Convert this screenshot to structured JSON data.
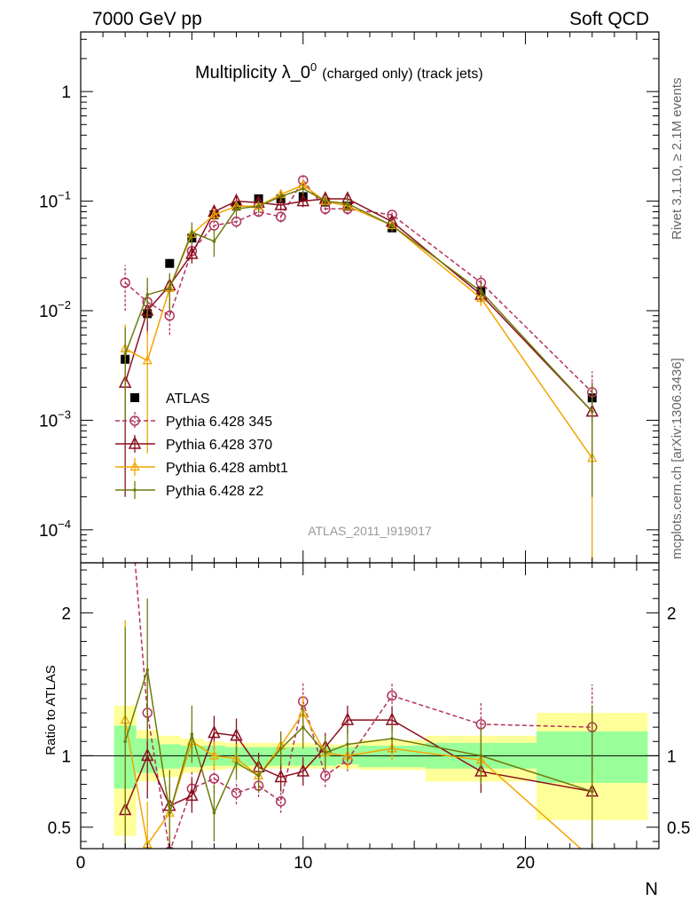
{
  "header": {
    "left": "7000 GeV pp",
    "right": "Soft QCD"
  },
  "title": {
    "main": "Multiplicity λ_0",
    "sup": "0",
    "sub": "(charged only) (track jets)"
  },
  "side_labels": {
    "rivet": "Rivet 3.1.10, ≥ 2.1M events",
    "mcplots": "mcplots.cern.ch [arXiv:1306.3436]"
  },
  "analysis_id": "ATLAS_2011_I919017",
  "chart_data": [
    {
      "type": "line",
      "panel": "main",
      "yscale": "log",
      "xlim": [
        0,
        26
      ],
      "ylim": [
        5e-05,
        3.5
      ],
      "y_ticks": [
        {
          "value": 1,
          "base": "1",
          "exp": ""
        },
        {
          "value": 0.1,
          "base": "10",
          "exp": "−1"
        },
        {
          "value": 0.01,
          "base": "10",
          "exp": "−2"
        },
        {
          "value": 0.001,
          "base": "10",
          "exp": "−3"
        },
        {
          "value": 0.0001,
          "base": "10",
          "exp": "−4"
        }
      ],
      "legend_position": "lower-left",
      "series": [
        {
          "name": "ATLAS",
          "color": "#000000",
          "marker": "square",
          "style": "points",
          "x": [
            2,
            3,
            4,
            5,
            6,
            7,
            8,
            9,
            10,
            11,
            12,
            14,
            18,
            23
          ],
          "y": [
            0.0036,
            0.0094,
            0.027,
            0.046,
            0.075,
            0.09,
            0.105,
            0.105,
            0.11,
            0.098,
            0.09,
            0.057,
            0.015,
            0.0016
          ]
        },
        {
          "name": "Pythia 6.428 345",
          "color": "#b0345a",
          "marker": "circle",
          "style": "dashed",
          "x": [
            2,
            3,
            4,
            5,
            6,
            7,
            8,
            9,
            10,
            11,
            12,
            14,
            18,
            23
          ],
          "y": [
            0.018,
            0.012,
            0.009,
            0.035,
            0.06,
            0.065,
            0.08,
            0.072,
            0.155,
            0.085,
            0.085,
            0.075,
            0.018,
            0.0018
          ],
          "err": [
            0.008,
            0.004,
            0.003,
            0.006,
            0.008,
            0.008,
            0.008,
            0.008,
            0.02,
            0.01,
            0.01,
            0.007,
            0.003,
            0.001
          ]
        },
        {
          "name": "Pythia 6.428 370",
          "color": "#8b0f1e",
          "marker": "triangle",
          "style": "solid",
          "x": [
            2,
            3,
            4,
            5,
            6,
            7,
            8,
            9,
            10,
            11,
            12,
            14,
            18,
            23
          ],
          "y": [
            0.0022,
            0.01,
            0.017,
            0.033,
            0.08,
            0.1,
            0.097,
            0.092,
            0.1,
            0.105,
            0.105,
            0.065,
            0.014,
            0.0012
          ],
          "err": [
            0.002,
            0.004,
            0.004,
            0.006,
            0.01,
            0.012,
            0.01,
            0.01,
            0.012,
            0.012,
            0.012,
            0.007,
            0.002,
            0.001
          ]
        },
        {
          "name": "Pythia 6.428 ambt1",
          "color": "#f2a500",
          "marker": "triangle-small",
          "style": "solid",
          "x": [
            2,
            3,
            4,
            5,
            6,
            7,
            8,
            9,
            10,
            11,
            12,
            14,
            18,
            23
          ],
          "y": [
            0.0045,
            0.0035,
            0.016,
            0.05,
            0.075,
            0.09,
            0.09,
            0.115,
            0.14,
            0.1,
            0.09,
            0.06,
            0.013,
            0.00045
          ],
          "err": [
            0.003,
            0.003,
            0.005,
            0.008,
            0.01,
            0.01,
            0.01,
            0.012,
            0.015,
            0.01,
            0.01,
            0.006,
            0.002,
            0.0005
          ]
        },
        {
          "name": "Pythia 6.428 z2",
          "color": "#6e7a0c",
          "marker": "dot",
          "style": "solid",
          "x": [
            2,
            3,
            4,
            5,
            6,
            7,
            8,
            9,
            10,
            11,
            12,
            14,
            18,
            23
          ],
          "y": [
            0.004,
            0.014,
            0.016,
            0.052,
            0.043,
            0.085,
            0.09,
            0.11,
            0.13,
            0.1,
            0.095,
            0.06,
            0.015,
            0.0012
          ],
          "err": [
            0.003,
            0.006,
            0.006,
            0.012,
            0.012,
            0.012,
            0.012,
            0.012,
            0.015,
            0.012,
            0.012,
            0.007,
            0.003,
            0.001
          ]
        }
      ]
    },
    {
      "type": "line",
      "panel": "ratio",
      "ylabel": "Ratio to ATLAS",
      "xlabel": "N",
      "xlim": [
        0,
        26
      ],
      "ylim": [
        0.35,
        2.35
      ],
      "x_ticks": [
        0,
        10,
        20
      ],
      "y_ticks": [
        0.5,
        1,
        2
      ],
      "bands": {
        "edges": [
          1.5,
          2.5,
          3.5,
          4.5,
          5.5,
          6.5,
          7.5,
          8.5,
          9.5,
          10.5,
          11.5,
          12.5,
          15.5,
          20.5,
          25.5
        ],
        "inner": [
          [
            0.77,
            1.21
          ],
          [
            0.88,
            1.12
          ],
          [
            0.91,
            1.08
          ],
          [
            0.92,
            1.07
          ],
          [
            0.93,
            1.07
          ],
          [
            0.93,
            1.06
          ],
          [
            0.93,
            1.06
          ],
          [
            0.93,
            1.06
          ],
          [
            0.93,
            1.06
          ],
          [
            0.93,
            1.06
          ],
          [
            0.94,
            1.06
          ],
          [
            0.92,
            1.07
          ],
          [
            0.91,
            1.09
          ],
          [
            0.81,
            1.17
          ]
        ],
        "outer": [
          [
            0.44,
            1.35
          ],
          [
            0.82,
            1.18
          ],
          [
            0.85,
            1.14
          ],
          [
            0.88,
            1.12
          ],
          [
            0.9,
            1.1
          ],
          [
            0.91,
            1.09
          ],
          [
            0.91,
            1.09
          ],
          [
            0.91,
            1.09
          ],
          [
            0.91,
            1.09
          ],
          [
            0.91,
            1.08
          ],
          [
            0.91,
            1.08
          ],
          [
            0.9,
            1.11
          ],
          [
            0.82,
            1.14
          ],
          [
            0.55,
            1.3
          ]
        ]
      },
      "series": [
        {
          "name": "Pythia 6.428 345",
          "color": "#b0345a",
          "marker": "circle",
          "style": "dashed",
          "x": [
            2,
            3,
            4,
            5,
            6,
            7,
            8,
            9,
            10,
            11,
            12,
            14,
            18,
            23
          ],
          "y": [
            3.2,
            1.3,
            0.33,
            0.77,
            0.84,
            0.74,
            0.79,
            0.68,
            1.38,
            0.86,
            0.97,
            1.42,
            1.22,
            1.2
          ],
          "err": [
            0.4,
            0.3,
            0.1,
            0.12,
            0.1,
            0.08,
            0.08,
            0.08,
            0.14,
            0.08,
            0.08,
            0.09,
            0.15,
            0.3
          ]
        },
        {
          "name": "Pythia 6.428 370",
          "color": "#8b0f1e",
          "marker": "triangle",
          "style": "solid",
          "x": [
            2,
            3,
            4,
            5,
            6,
            7,
            8,
            9,
            10,
            11,
            12,
            14,
            18,
            23
          ],
          "y": [
            0.62,
            1.0,
            0.65,
            0.72,
            1.16,
            1.14,
            0.92,
            0.85,
            0.89,
            1.06,
            1.25,
            1.25,
            0.89,
            0.75
          ],
          "err": [
            0.5,
            0.3,
            0.15,
            0.12,
            0.12,
            0.12,
            0.1,
            0.1,
            0.1,
            0.1,
            0.1,
            0.09,
            0.15,
            0.5
          ]
        },
        {
          "name": "Pythia 6.428 ambt1",
          "color": "#f2a500",
          "marker": "triangle-small",
          "style": "solid",
          "x": [
            2,
            3,
            4,
            5,
            6,
            7,
            8,
            9,
            10,
            11,
            12,
            14,
            18,
            23
          ],
          "y": [
            1.25,
            0.38,
            0.6,
            1.1,
            1.0,
            0.98,
            0.86,
            1.07,
            1.3,
            1.02,
            1.0,
            1.05,
            0.97,
            0.28
          ],
          "err": [
            0.7,
            0.3,
            0.2,
            0.12,
            0.1,
            0.1,
            0.1,
            0.1,
            0.12,
            0.1,
            0.1,
            0.08,
            0.15,
            0.6
          ]
        },
        {
          "name": "Pythia 6.428 z2",
          "color": "#6e7a0c",
          "marker": "dot",
          "style": "solid",
          "x": [
            2,
            3,
            4,
            5,
            6,
            7,
            8,
            9,
            10,
            11,
            12,
            14,
            18,
            23
          ],
          "y": [
            1.1,
            1.6,
            0.6,
            1.15,
            0.6,
            0.95,
            0.86,
            1.05,
            1.2,
            1.02,
            1.08,
            1.12,
            1.0,
            0.75
          ],
          "err": [
            0.8,
            0.5,
            0.3,
            0.2,
            0.2,
            0.12,
            0.12,
            0.12,
            0.15,
            0.12,
            0.12,
            0.1,
            0.2,
            0.6
          ]
        }
      ]
    }
  ]
}
